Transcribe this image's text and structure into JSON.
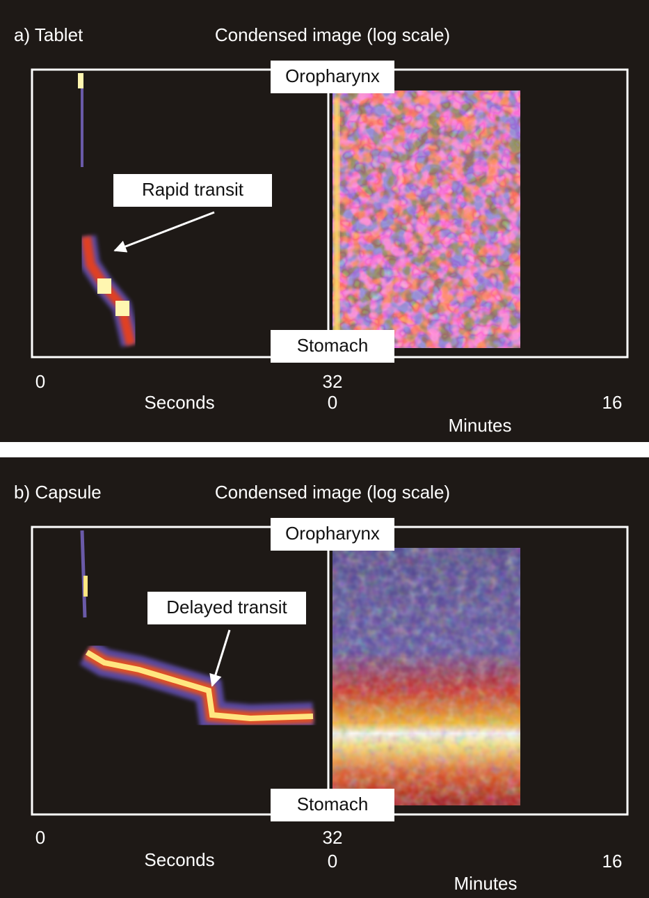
{
  "panels": [
    {
      "label": "a)  Tablet",
      "title": "Condensed image (log scale)",
      "top_label": "Oropharynx",
      "bottom_label": "Stomach",
      "annotation": "Rapid transit",
      "seconds_axis": {
        "start": 0,
        "end": 32,
        "label": "Seconds"
      },
      "minutes_axis": {
        "start": 0,
        "end": 16,
        "label": "Minutes"
      }
    },
    {
      "label": "b)  Capsule",
      "title": "Condensed image (log scale)",
      "top_label": "Oropharynx",
      "bottom_label": "Stomach",
      "annotation": "Delayed transit",
      "seconds_axis": {
        "start": 0,
        "end": 32,
        "label": "Seconds"
      },
      "minutes_axis": {
        "start": 0,
        "end": 16,
        "label": "Minutes"
      }
    }
  ]
}
